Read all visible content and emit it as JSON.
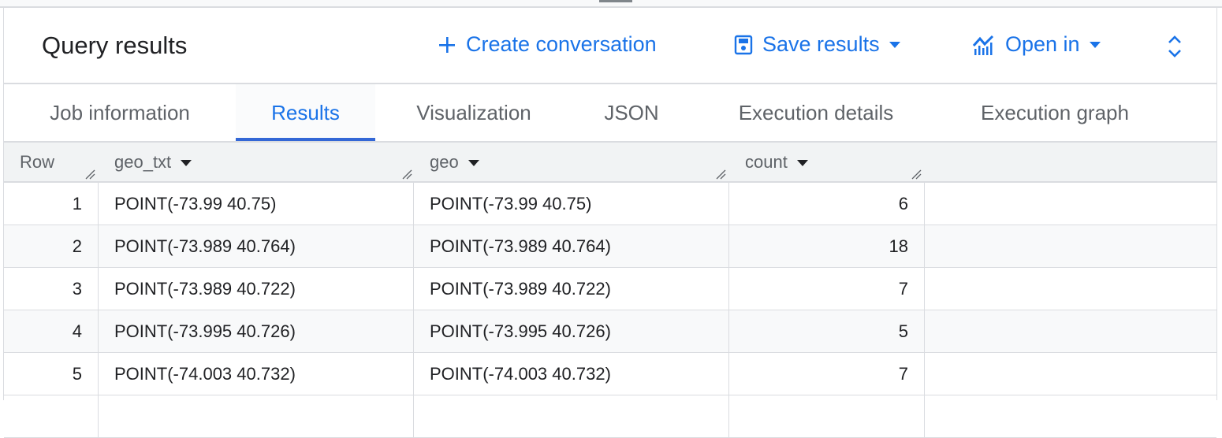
{
  "header": {
    "title": "Query results",
    "create_conversation": "Create conversation",
    "save_results": "Save results",
    "open_in": "Open in"
  },
  "tabs": [
    {
      "label": "Job information"
    },
    {
      "label": "Results",
      "active": true
    },
    {
      "label": "Visualization"
    },
    {
      "label": "JSON"
    },
    {
      "label": "Execution details"
    },
    {
      "label": "Execution graph"
    }
  ],
  "table": {
    "columns": [
      "Row",
      "geo_txt",
      "geo",
      "count"
    ],
    "rows": [
      {
        "row": "1",
        "geo_txt": "POINT(-73.99 40.75)",
        "geo": "POINT(-73.99 40.75)",
        "count": "6"
      },
      {
        "row": "2",
        "geo_txt": "POINT(-73.989 40.764)",
        "geo": "POINT(-73.989 40.764)",
        "count": "18"
      },
      {
        "row": "3",
        "geo_txt": "POINT(-73.989 40.722)",
        "geo": "POINT(-73.989 40.722)",
        "count": "7"
      },
      {
        "row": "4",
        "geo_txt": "POINT(-73.995 40.726)",
        "geo": "POINT(-73.995 40.726)",
        "count": "5"
      },
      {
        "row": "5",
        "geo_txt": "POINT(-74.003 40.732)",
        "geo": "POINT(-74.003 40.732)",
        "count": "7"
      }
    ]
  },
  "colors": {
    "accent": "#1a73e8",
    "header_bg": "#f1f3f4",
    "alt_row": "#f8f9fa"
  }
}
